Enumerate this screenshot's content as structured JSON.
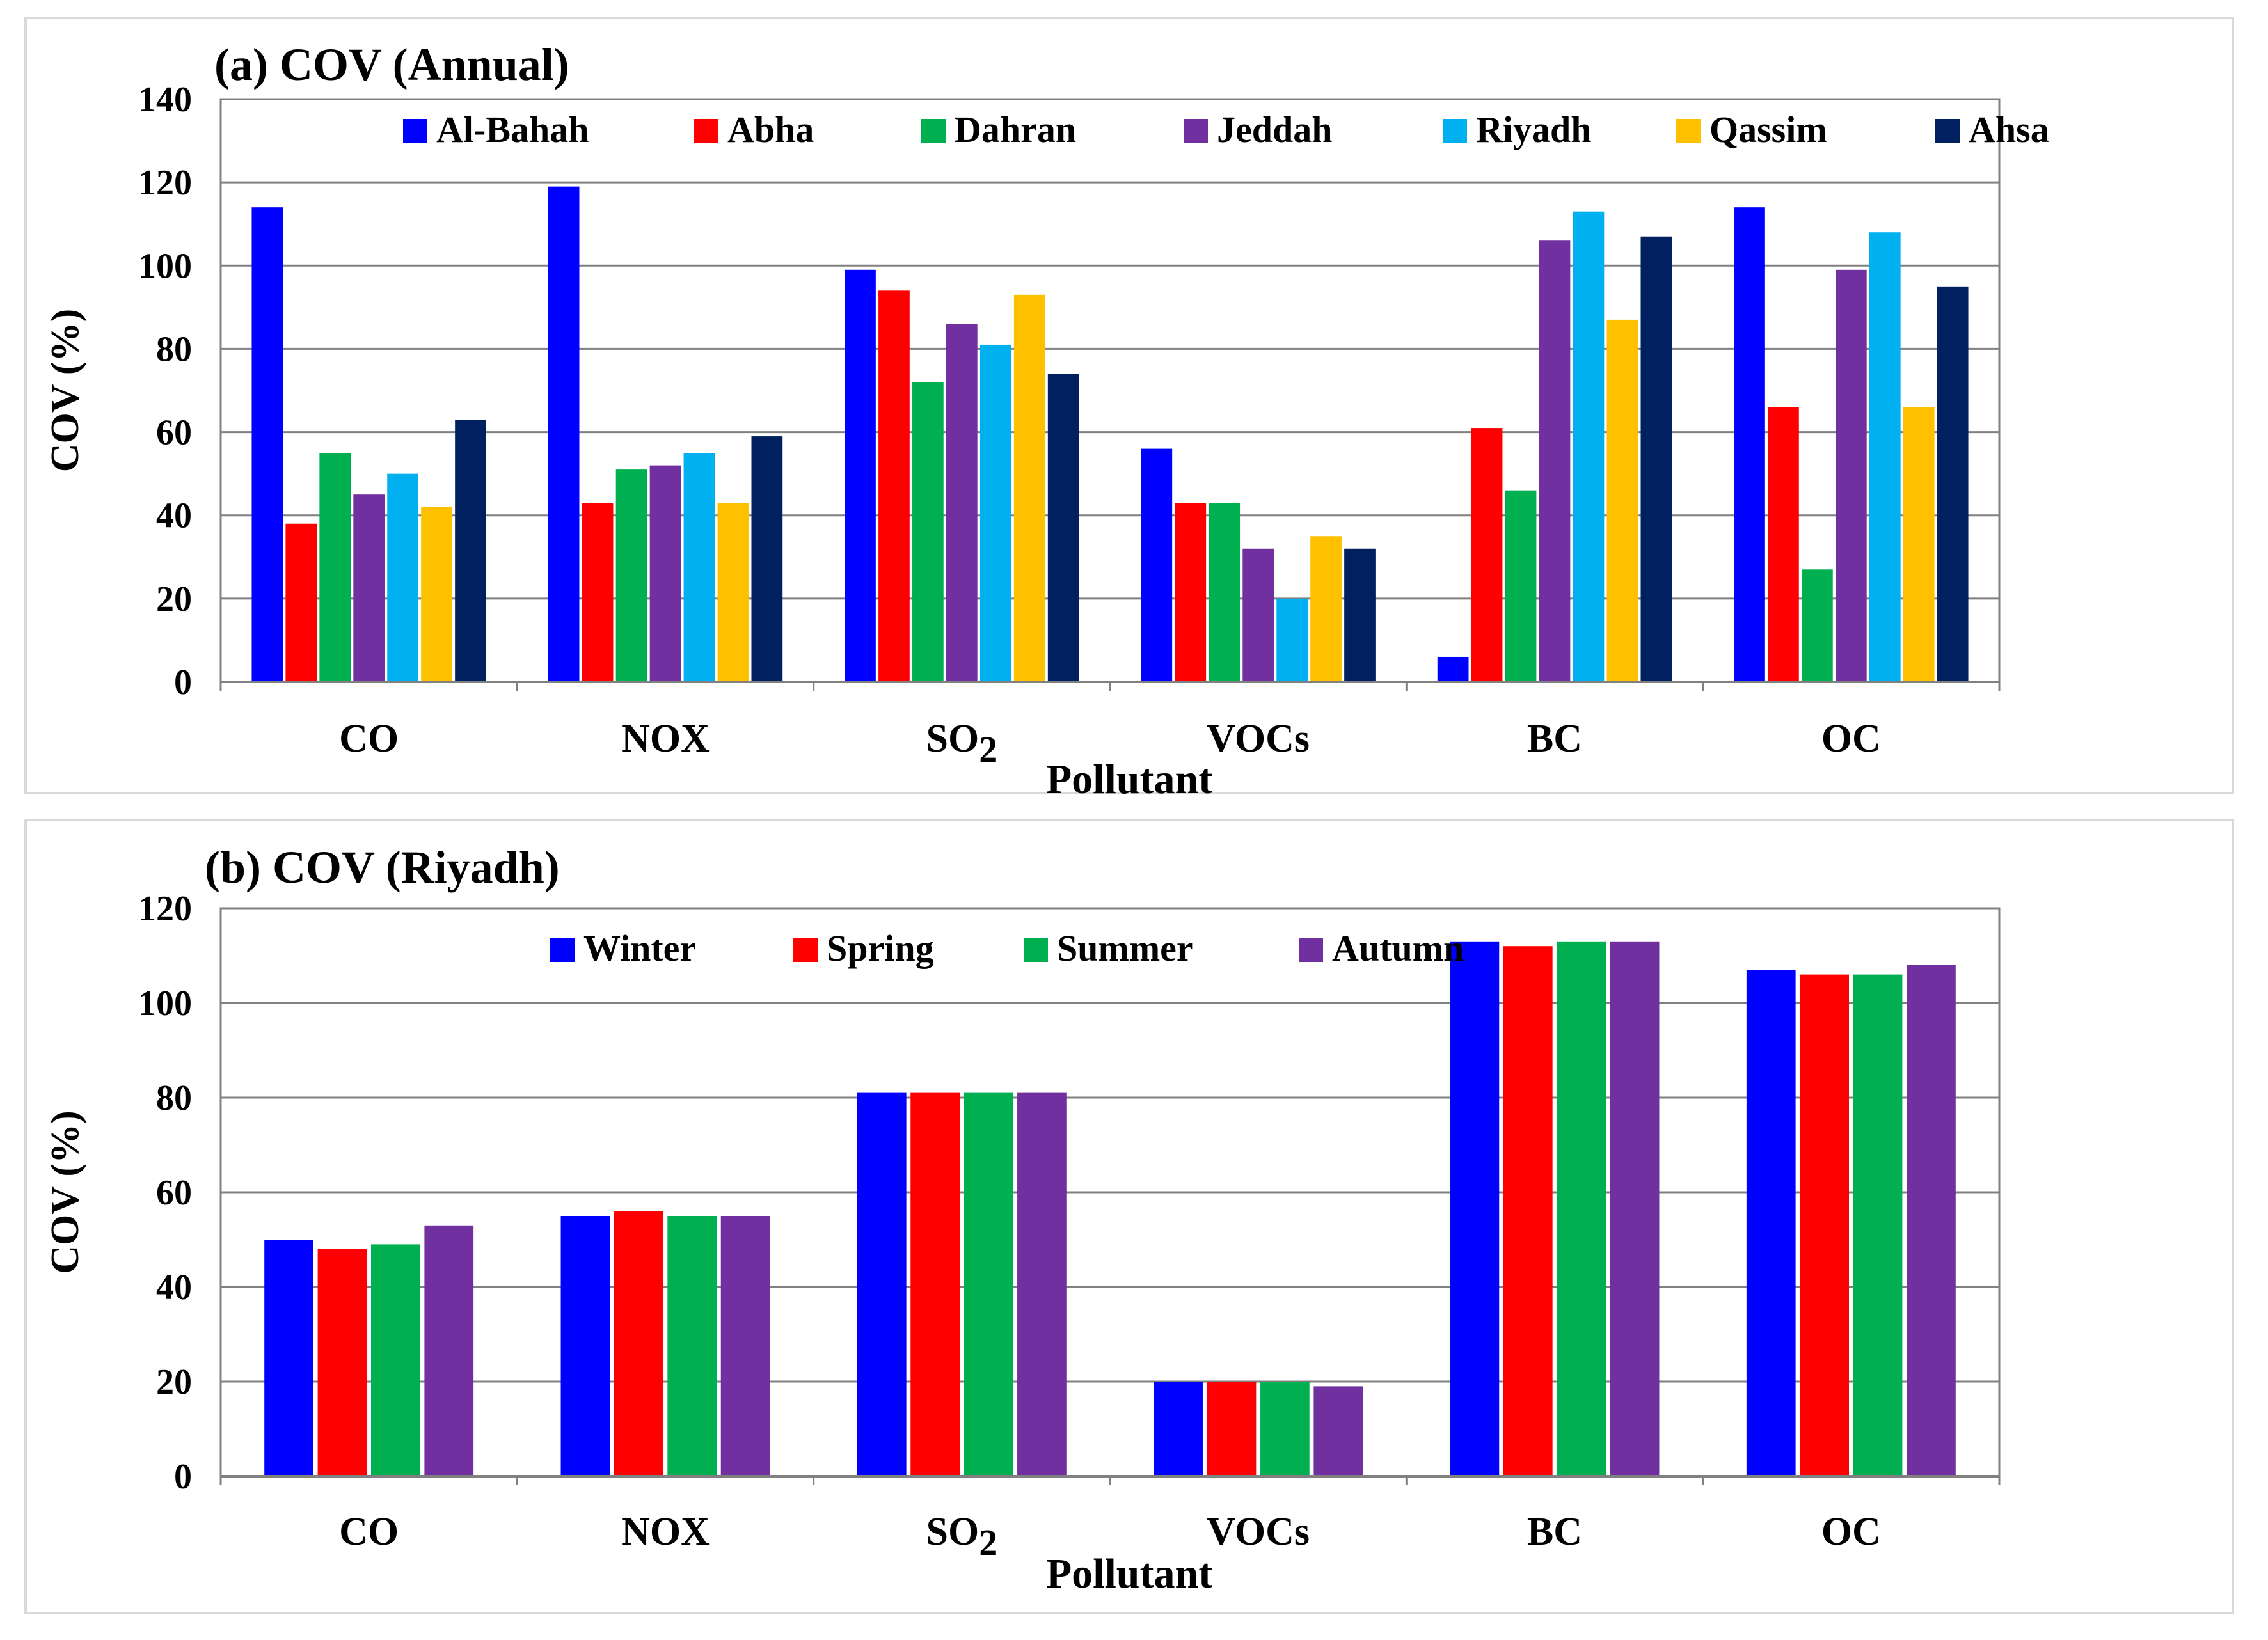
{
  "chart_data": [
    {
      "type": "bar",
      "panel_label": "(a)",
      "title": "(a) COV (Annual)",
      "xlabel": "Pollutant",
      "ylabel": "COV (%)",
      "ylim": [
        0,
        140
      ],
      "yticks": [
        0,
        20,
        40,
        60,
        80,
        100,
        120,
        140
      ],
      "grid": true,
      "legend_position": "top",
      "categories": [
        "CO",
        "NOX",
        "SO",
        "VOCs",
        "BC",
        "OC"
      ],
      "category_subscripts": [
        "",
        "",
        "2",
        "",
        "",
        ""
      ],
      "series": [
        {
          "name": "Al-Bahah",
          "color": "#0000ff",
          "values": [
            114,
            119,
            99,
            56,
            6,
            114
          ]
        },
        {
          "name": "Abha",
          "color": "#ff0000",
          "values": [
            38,
            43,
            94,
            43,
            61,
            66
          ]
        },
        {
          "name": "Dahran",
          "color": "#00b050",
          "values": [
            55,
            51,
            72,
            43,
            46,
            27
          ]
        },
        {
          "name": "Jeddah",
          "color": "#7030a0",
          "values": [
            45,
            52,
            86,
            32,
            106,
            99
          ]
        },
        {
          "name": "Riyadh",
          "color": "#00b0f0",
          "values": [
            50,
            55,
            81,
            20,
            113,
            108
          ]
        },
        {
          "name": "Qassim",
          "color": "#ffc000",
          "values": [
            42,
            43,
            93,
            35,
            87,
            66
          ]
        },
        {
          "name": "Ahsa",
          "color": "#002060",
          "values": [
            63,
            59,
            74,
            32,
            107,
            95
          ]
        }
      ]
    },
    {
      "type": "bar",
      "panel_label": "(b)",
      "title": "(b) COV (Riyadh)",
      "xlabel": "Pollutant",
      "ylabel": "COV (%)",
      "ylim": [
        0,
        120
      ],
      "yticks": [
        0,
        20,
        40,
        60,
        80,
        100,
        120
      ],
      "grid": true,
      "legend_position": "top",
      "categories": [
        "CO",
        "NOX",
        "SO",
        "VOCs",
        "BC",
        "OC"
      ],
      "category_subscripts": [
        "",
        "",
        "2",
        "",
        "",
        ""
      ],
      "series": [
        {
          "name": "Winter",
          "color": "#0000ff",
          "values": [
            50,
            55,
            81,
            20,
            113,
            107
          ]
        },
        {
          "name": "Spring",
          "color": "#ff0000",
          "values": [
            48,
            56,
            81,
            20,
            112,
            106
          ]
        },
        {
          "name": "Summer",
          "color": "#00b050",
          "values": [
            49,
            55,
            81,
            20,
            113,
            106
          ]
        },
        {
          "name": "Autumn",
          "color": "#7030a0",
          "values": [
            53,
            55,
            81,
            19,
            113,
            108
          ]
        }
      ]
    }
  ]
}
